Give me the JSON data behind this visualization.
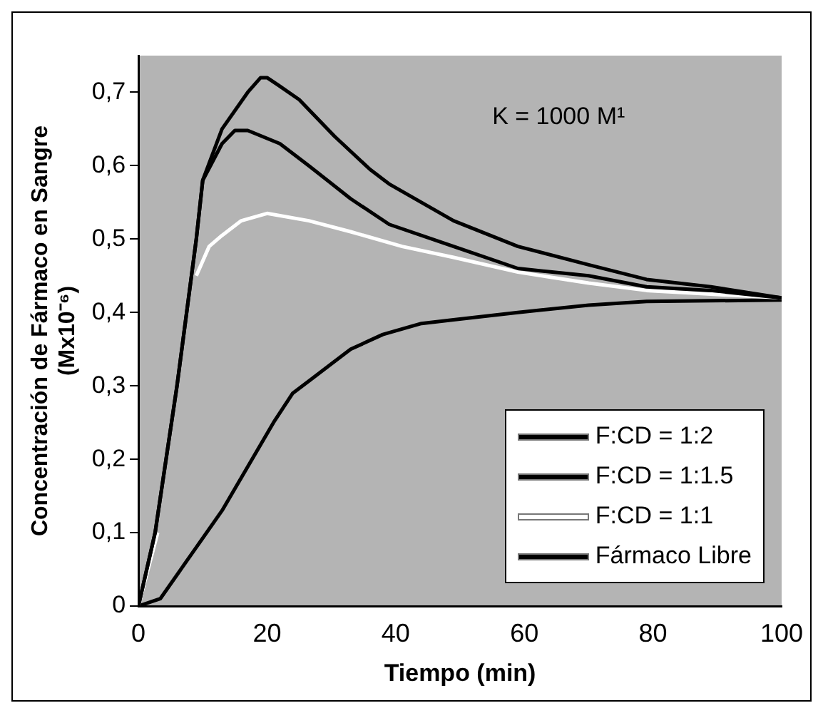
{
  "chart_data": {
    "type": "line",
    "xlabel": "Tiempo (min)",
    "ylabel": "Concentración de Fármaco en Sangre (Mx10⁻⁶)",
    "annotations": [
      "K = 1000 M¹"
    ],
    "xlim": [
      0,
      100
    ],
    "xticks": [
      0,
      20,
      40,
      60,
      80,
      100
    ],
    "ylim": [
      0,
      0.75
    ],
    "yticks": [
      0,
      {
        "value": 0.1,
        "label": "0,1"
      },
      {
        "value": 0.2,
        "label": "0,2"
      },
      {
        "value": 0.3,
        "label": "0,3"
      },
      {
        "value": 0.4,
        "label": "0,4"
      },
      {
        "value": 0.5,
        "label": "0,5"
      },
      {
        "value": 0.6,
        "label": "0,6"
      },
      {
        "value": 0.7,
        "label": "0,7"
      }
    ],
    "grid": false,
    "legend": "bottom right",
    "marker": "none",
    "line_style": "solid",
    "series": [
      {
        "name": "F:CD = 1:2",
        "color": "#000000",
        "x": [
          0,
          2.6,
          6,
          9,
          10,
          13,
          17,
          19,
          20,
          21.7,
          25,
          30.5,
          36,
          39,
          49,
          59,
          70,
          79,
          89,
          100
        ],
        "values": [
          0,
          0.1,
          0.3,
          0.5,
          0.58,
          0.65,
          0.7,
          0.72,
          0.72,
          0.71,
          0.69,
          0.64,
          0.595,
          0.575,
          0.525,
          0.49,
          0.465,
          0.445,
          0.435,
          0.42
        ]
      },
      {
        "name": "F:CD = 1:1.5",
        "color": "#000000",
        "x": [
          0,
          2.6,
          6,
          9,
          10,
          13,
          15,
          17,
          22,
          26.5,
          33,
          39,
          49,
          59,
          70,
          79,
          89,
          100
        ],
        "values": [
          0,
          0.1,
          0.3,
          0.5,
          0.58,
          0.63,
          0.648,
          0.648,
          0.63,
          0.6,
          0.555,
          0.52,
          0.49,
          0.46,
          0.45,
          0.435,
          0.43,
          0.42
        ]
      },
      {
        "name": "F:CD = 1:1",
        "color": "#ffffff",
        "x": [
          0,
          3,
          6,
          9,
          11,
          13,
          16,
          20,
          26.5,
          33,
          41,
          49,
          59,
          70,
          79,
          89,
          100
        ],
        "values": [
          0,
          0.1,
          null,
          0.45,
          0.49,
          0.505,
          0.525,
          0.535,
          0.525,
          0.51,
          0.49,
          0.475,
          0.455,
          0.44,
          0.43,
          0.425,
          0.42
        ]
      },
      {
        "name": "Fármaco Libre",
        "color": "#000000",
        "x": [
          0,
          3.4,
          9,
          13,
          17,
          21,
          24,
          27,
          33,
          38,
          44,
          49,
          59,
          70,
          79,
          100
        ],
        "values": [
          0,
          0.01,
          0.08,
          0.13,
          0.19,
          0.25,
          0.29,
          0.31,
          0.35,
          0.37,
          0.385,
          0.39,
          0.4,
          0.41,
          0.415,
          0.417
        ]
      }
    ]
  }
}
